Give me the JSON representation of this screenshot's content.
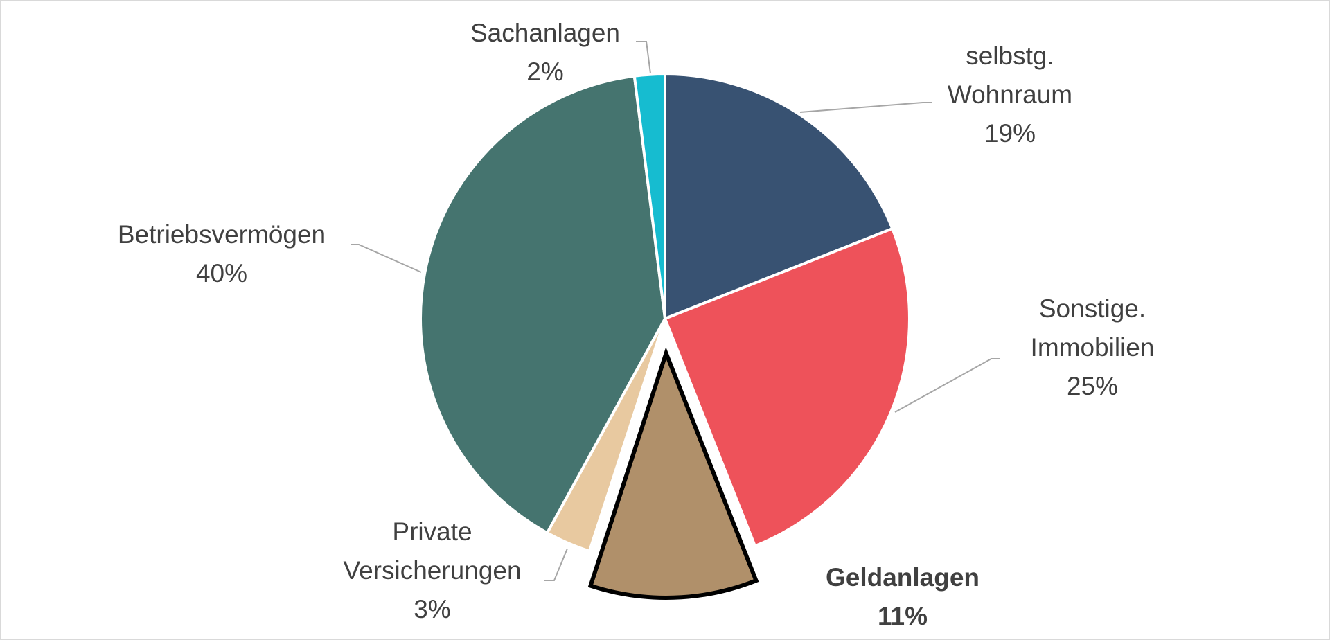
{
  "chart_data": {
    "type": "pie",
    "title": "",
    "slices": [
      {
        "label_lines": [
          "selbstg.",
          "Wohnraum"
        ],
        "value": 19,
        "value_label": "19%",
        "color": "#385272",
        "exploded": false,
        "highlight": false
      },
      {
        "label_lines": [
          "Sonstige.",
          "Immobilien"
        ],
        "value": 25,
        "value_label": "25%",
        "color": "#ee525a",
        "exploded": false,
        "highlight": false
      },
      {
        "label_lines": [
          "Geldanlagen"
        ],
        "value": 11,
        "value_label": "11%",
        "color": "#b0906a",
        "exploded": true,
        "highlight": true
      },
      {
        "label_lines": [
          "Private",
          "Versicherungen"
        ],
        "value": 3,
        "value_label": "3%",
        "color": "#e8c9a0",
        "exploded": false,
        "highlight": false
      },
      {
        "label_lines": [
          "Betriebsvermögen"
        ],
        "value": 40,
        "value_label": "40%",
        "color": "#45746f",
        "exploded": false,
        "highlight": false
      },
      {
        "label_lines": [
          "Sachanlagen"
        ],
        "value": 2,
        "value_label": "2%",
        "color": "#16bcd0",
        "exploded": false,
        "highlight": false
      }
    ],
    "start_angle": "12 o'clock",
    "direction": "clockwise",
    "legend": "none",
    "data_labels": "category and percentage with leader lines"
  }
}
